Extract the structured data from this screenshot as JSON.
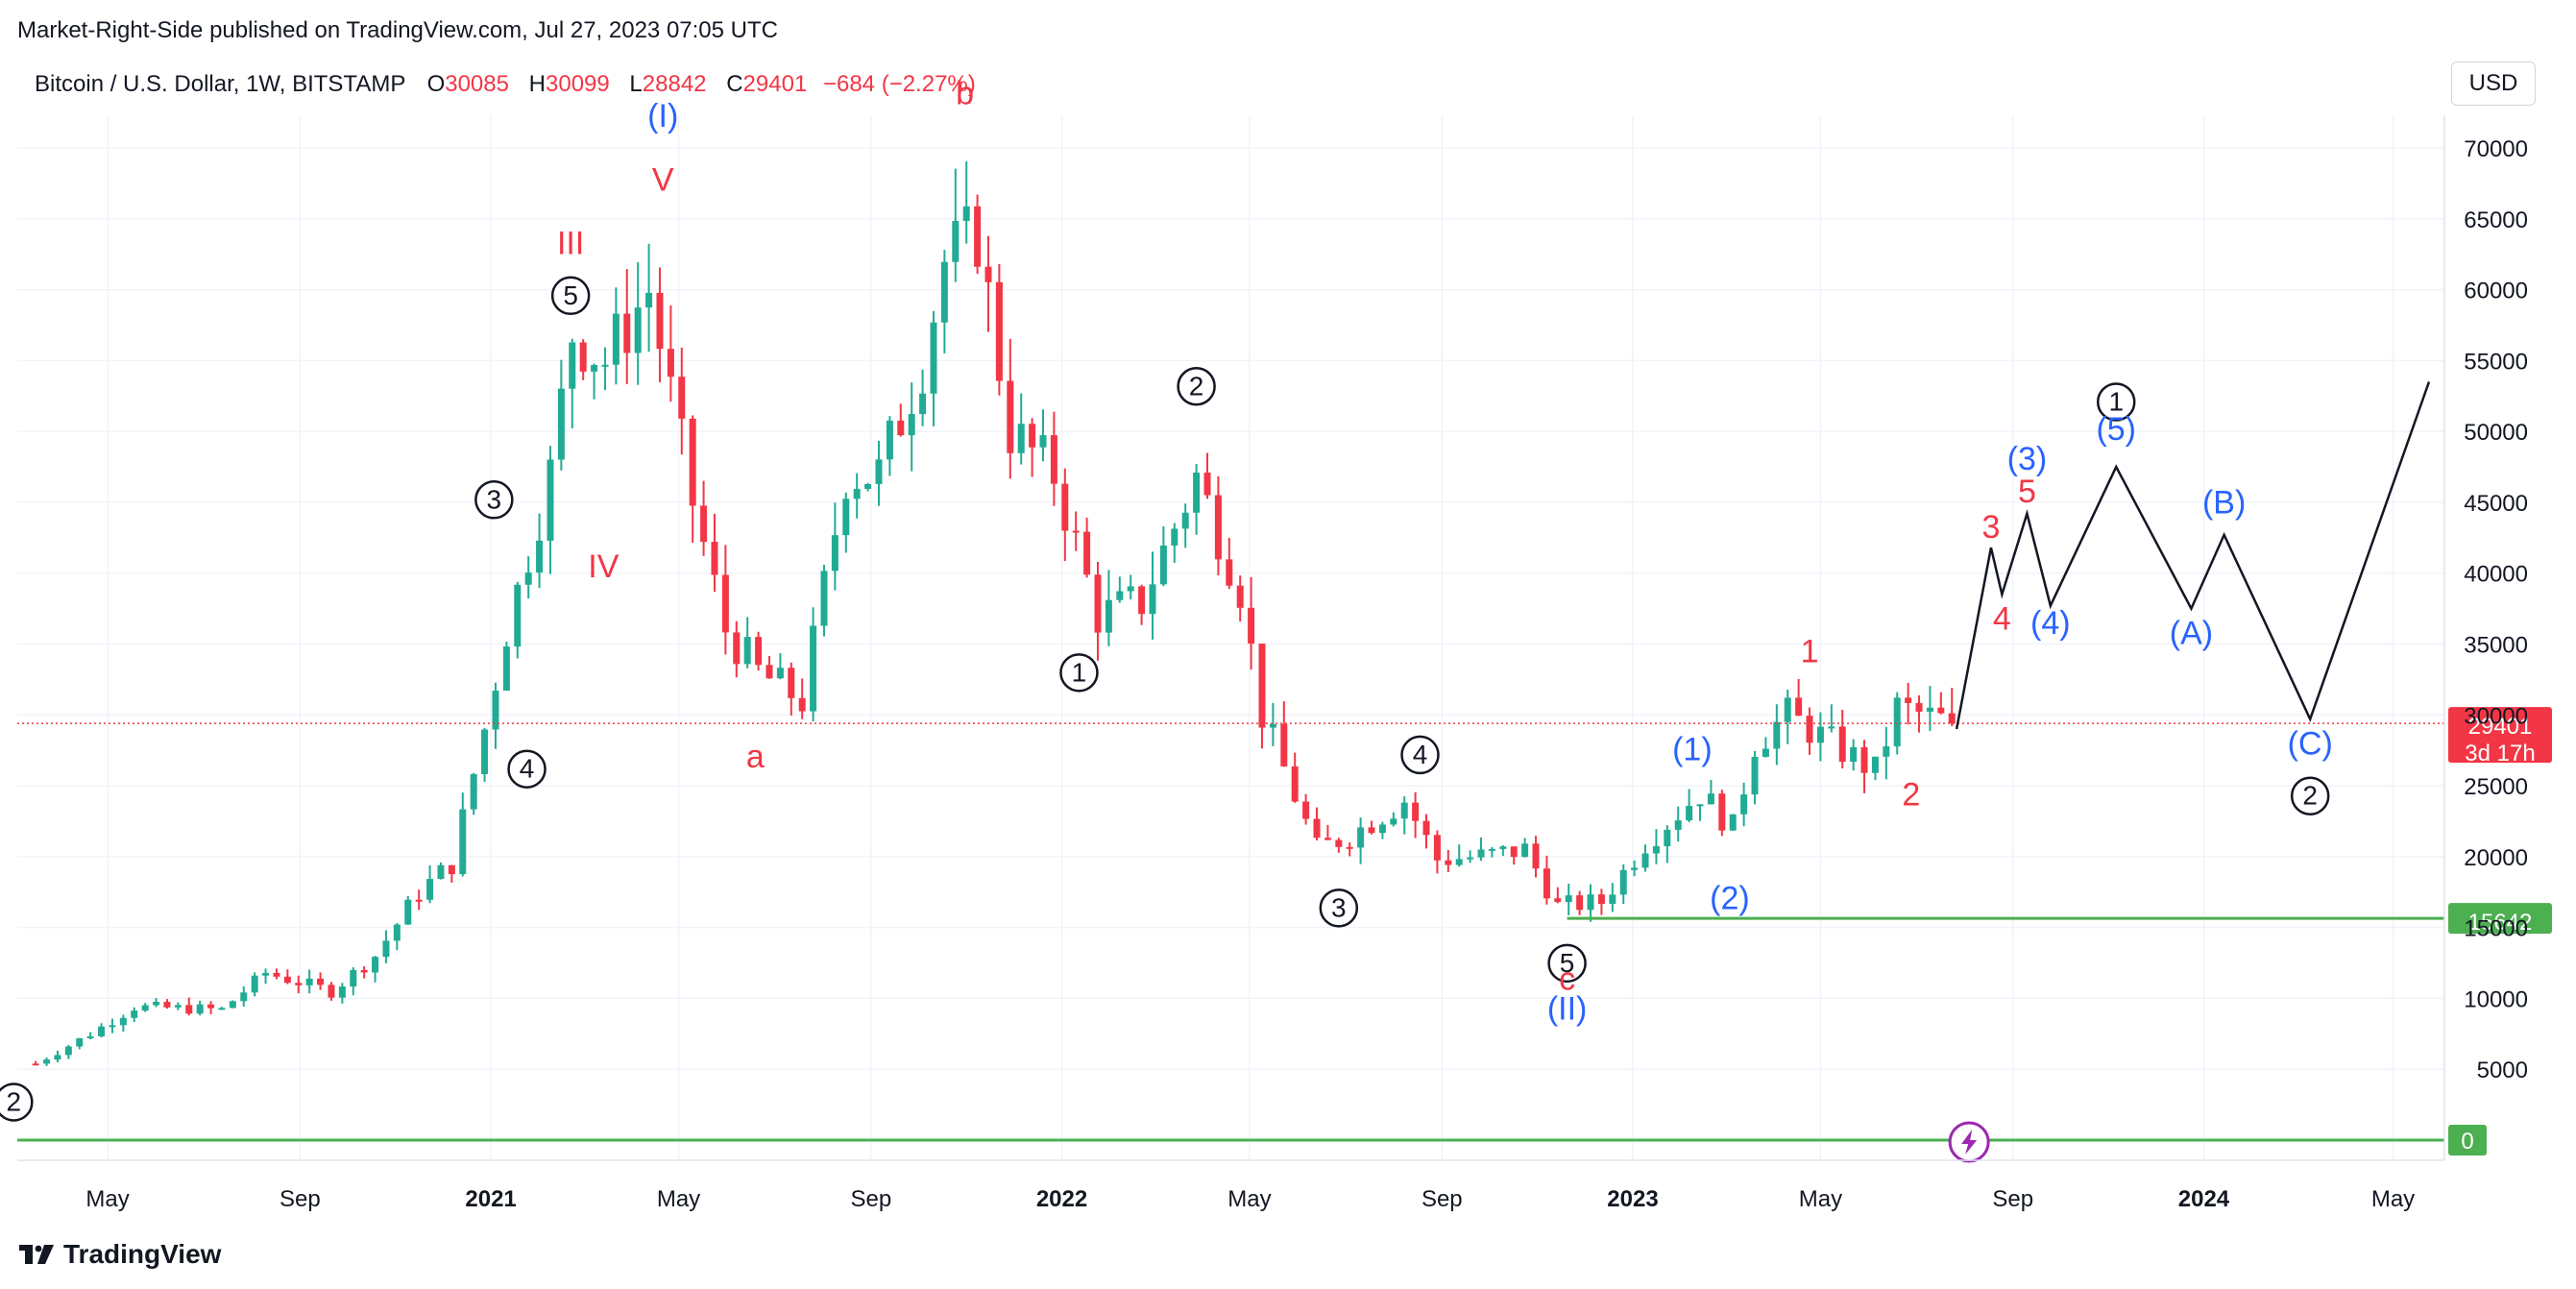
{
  "attribution": "Market-Right-Side published on TradingView.com, Jul 27, 2023 07:05 UTC",
  "legend": {
    "symbol": "Bitcoin / U.S. Dollar, 1W, BITSTAMP",
    "open_label": "O",
    "open": "30085",
    "high_label": "H",
    "high": "30099",
    "low_label": "L",
    "low": "28842",
    "close_label": "C",
    "close": "29401",
    "change": "−684 (−2.27%)"
  },
  "currency_button": "USD",
  "brand": "TradingView",
  "colors": {
    "up": "#22ab94",
    "down": "#f23645",
    "label_red": "#f23645",
    "label_blue": "#2962ff",
    "label_black": "#131722",
    "support": "#4caf50",
    "price_line": "#f23645",
    "grid": "#f0f3fa"
  },
  "chart_data": {
    "type": "candlestick",
    "interval": "1W",
    "ylim": [
      0,
      72000
    ],
    "y_ticks": [
      "70000",
      "65000",
      "60000",
      "55000",
      "50000",
      "45000",
      "40000",
      "35000",
      "30000",
      "25000",
      "20000",
      "15000",
      "10000",
      "5000"
    ],
    "x_ticks": [
      {
        "label": "May",
        "date": "2020-05-01",
        "bold": false
      },
      {
        "label": "Sep",
        "date": "2020-09-01",
        "bold": false
      },
      {
        "label": "2021",
        "date": "2021-01-01",
        "bold": true
      },
      {
        "label": "May",
        "date": "2021-05-01",
        "bold": false
      },
      {
        "label": "Sep",
        "date": "2021-09-01",
        "bold": false
      },
      {
        "label": "2022",
        "date": "2022-01-01",
        "bold": true
      },
      {
        "label": "May",
        "date": "2022-05-01",
        "bold": false
      },
      {
        "label": "Sep",
        "date": "2022-09-01",
        "bold": false
      },
      {
        "label": "2023",
        "date": "2023-01-01",
        "bold": true
      },
      {
        "label": "May",
        "date": "2023-05-01",
        "bold": false
      },
      {
        "label": "Sep",
        "date": "2023-09-01",
        "bold": false
      },
      {
        "label": "2024",
        "date": "2024-01-01",
        "bold": true
      },
      {
        "label": "May",
        "date": "2024-05-01",
        "bold": false
      }
    ],
    "close_path": [
      [
        "2020-03-16",
        5400
      ],
      [
        "2020-04-20",
        7500
      ],
      [
        "2020-05-18",
        9400
      ],
      [
        "2020-07-13",
        9200
      ],
      [
        "2020-08-10",
        11800
      ],
      [
        "2020-09-21",
        10500
      ],
      [
        "2020-10-19",
        13000
      ],
      [
        "2020-11-16",
        17500
      ],
      [
        "2020-12-07",
        19500
      ],
      [
        "2020-12-28",
        29000
      ],
      [
        "2021-01-11",
        36000
      ],
      [
        "2021-02-08",
        47000
      ],
      [
        "2021-02-22",
        57000
      ],
      [
        "2021-03-15",
        55000
      ],
      [
        "2021-04-12",
        60000
      ],
      [
        "2021-05-10",
        45000
      ],
      [
        "2021-05-31",
        36000
      ],
      [
        "2021-06-21",
        33000
      ],
      [
        "2021-07-19",
        31000
      ],
      [
        "2021-08-16",
        47000
      ],
      [
        "2021-09-06",
        47000
      ],
      [
        "2021-10-04",
        55000
      ],
      [
        "2021-10-18",
        62000
      ],
      [
        "2021-11-08",
        64000
      ],
      [
        "2021-11-29",
        50000
      ],
      [
        "2021-12-27",
        47000
      ],
      [
        "2022-01-24",
        37000
      ],
      [
        "2022-02-21",
        38000
      ],
      [
        "2022-03-28",
        46800
      ],
      [
        "2022-04-25",
        39000
      ],
      [
        "2022-05-09",
        30000
      ],
      [
        "2022-06-13",
        20500
      ],
      [
        "2022-07-04",
        21500
      ],
      [
        "2022-08-08",
        24000
      ],
      [
        "2022-08-29",
        19800
      ],
      [
        "2022-09-26",
        20000
      ],
      [
        "2022-10-24",
        20500
      ],
      [
        "2022-11-14",
        16500
      ],
      [
        "2022-12-12",
        16800
      ],
      [
        "2023-01-09",
        21000
      ],
      [
        "2023-02-13",
        24500
      ],
      [
        "2023-03-06",
        22000
      ],
      [
        "2023-03-20",
        28000
      ],
      [
        "2023-04-10",
        30000
      ],
      [
        "2023-05-01",
        28500
      ],
      [
        "2023-06-05",
        26000
      ],
      [
        "2023-06-19",
        30500
      ],
      [
        "2023-07-24",
        29401
      ]
    ],
    "last_price": "29401",
    "countdown": "3d 17h",
    "support_level": "15642",
    "zero_level": "0",
    "wave_labels": [
      {
        "text": "2",
        "date": "2020-03-02",
        "price": 2000,
        "color": "black",
        "circled": true
      },
      {
        "text": "③",
        "date": "2021-01-03",
        "price": 44500,
        "color": "black"
      },
      {
        "text": "④",
        "date": "2021-01-24",
        "price": 25500,
        "color": "black"
      },
      {
        "text": "III",
        "date": "2021-02-21",
        "price": 62500,
        "color": "red"
      },
      {
        "text": "⑤",
        "date": "2021-02-21",
        "price": 58900,
        "color": "black"
      },
      {
        "text": "IV",
        "date": "2021-03-14",
        "price": 39700,
        "color": "red"
      },
      {
        "text": "(I)",
        "date": "2021-04-21",
        "price": 71500,
        "color": "blue"
      },
      {
        "text": "V",
        "date": "2021-04-21",
        "price": 67000,
        "color": "red"
      },
      {
        "text": "a",
        "date": "2021-06-19",
        "price": 26300,
        "color": "red"
      },
      {
        "text": "b",
        "date": "2021-10-31",
        "price": 73100,
        "color": "red"
      },
      {
        "text": "①",
        "date": "2022-01-12",
        "price": 32300,
        "color": "black"
      },
      {
        "text": "②",
        "date": "2022-03-28",
        "price": 52500,
        "color": "black"
      },
      {
        "text": "③",
        "date": "2022-06-27",
        "price": 15700,
        "color": "black"
      },
      {
        "text": "④",
        "date": "2022-08-18",
        "price": 26500,
        "color": "black"
      },
      {
        "text": "⑤",
        "date": "2022-11-20",
        "price": 11800,
        "color": "black"
      },
      {
        "text": "c",
        "date": "2022-11-20",
        "price": 10600,
        "color": "red"
      },
      {
        "text": "(II)",
        "date": "2022-11-20",
        "price": 8500,
        "color": "blue"
      },
      {
        "text": "(1)",
        "date": "2023-02-08",
        "price": 26800,
        "color": "blue"
      },
      {
        "text": "(2)",
        "date": "2023-03-04",
        "price": 16300,
        "color": "blue"
      },
      {
        "text": "1",
        "date": "2023-04-24",
        "price": 33700,
        "color": "red"
      },
      {
        "text": "2",
        "date": "2023-06-28",
        "price": 23600,
        "color": "red"
      },
      {
        "text": "3",
        "date": "2023-08-18",
        "price": 42500,
        "color": "red"
      },
      {
        "text": "4",
        "date": "2023-08-25",
        "price": 36000,
        "color": "red"
      },
      {
        "text": "5",
        "date": "2023-09-10",
        "price": 45000,
        "color": "red"
      },
      {
        "text": "(3)",
        "date": "2023-09-10",
        "price": 47300,
        "color": "blue"
      },
      {
        "text": "(4)",
        "date": "2023-09-25",
        "price": 35700,
        "color": "blue"
      },
      {
        "text": "①",
        "date": "2023-11-06",
        "price": 51400,
        "color": "black"
      },
      {
        "text": "(5)",
        "date": "2023-11-06",
        "price": 49400,
        "color": "blue"
      },
      {
        "text": "(A)",
        "date": "2023-12-24",
        "price": 35000,
        "color": "blue"
      },
      {
        "text": "(B)",
        "date": "2024-01-14",
        "price": 44200,
        "color": "blue"
      },
      {
        "text": "(C)",
        "date": "2024-03-09",
        "price": 27200,
        "color": "blue"
      },
      {
        "text": "②",
        "date": "2024-03-09",
        "price": 23600,
        "color": "black"
      }
    ],
    "projection": [
      [
        "2023-07-27",
        29000
      ],
      [
        "2023-08-18",
        41800
      ],
      [
        "2023-08-25",
        38500
      ],
      [
        "2023-09-10",
        44200
      ],
      [
        "2023-09-25",
        37700
      ],
      [
        "2023-11-06",
        47500
      ],
      [
        "2023-12-24",
        37500
      ],
      [
        "2024-01-14",
        42700
      ],
      [
        "2024-03-09",
        29700
      ],
      [
        "2024-05-24",
        53500
      ]
    ]
  }
}
